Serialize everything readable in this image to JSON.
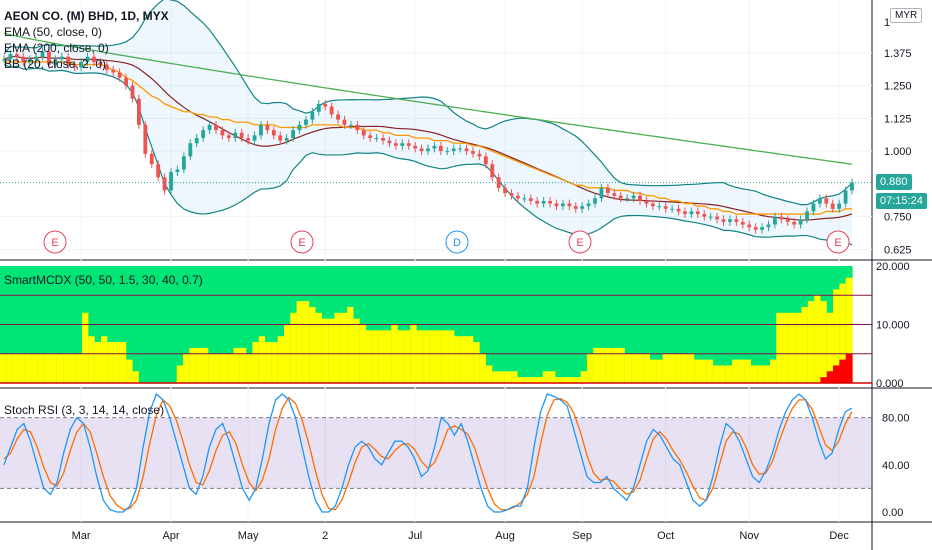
{
  "header": {
    "symbol_line": "AEON CO. (M) BHD, 1D, MYX",
    "ema50_label": "EMA (50, close, 0)",
    "ema200_label": "EMA (200, close, 0)",
    "bb_label": "BB (20, close, 2, 0)",
    "currency": "MYR"
  },
  "price_axis": {
    "ticks": [
      "1.375",
      "1.250",
      "1.125",
      "1.000",
      "0.750",
      "0.625"
    ],
    "last_price": "0.880",
    "countdown": "07:15:24",
    "partial_top_tick": "1"
  },
  "event_markers": [
    {
      "label": "E",
      "color": "#e2445c"
    },
    {
      "label": "E",
      "color": "#e2445c"
    },
    {
      "label": "D",
      "color": "#2196f3"
    },
    {
      "label": "E",
      "color": "#e2445c"
    },
    {
      "label": "E",
      "color": "#e2445c"
    }
  ],
  "x_axis": {
    "ticks": [
      "Mar",
      "Apr",
      "May",
      "2",
      "Jul",
      "Aug",
      "Sep",
      "Oct",
      "Nov",
      "Dec"
    ]
  },
  "smartmcdx": {
    "label": "SmartMCDX (50, 50, 1.5, 30, 40, 0.7)",
    "ticks": [
      "20.000",
      "10.000",
      "0.000"
    ]
  },
  "stochrsi": {
    "label": "Stoch RSI (3, 3, 14, 14, close)",
    "ticks": [
      "80.00",
      "40.00",
      "0.00"
    ]
  },
  "colors": {
    "up": "#26a69a",
    "down": "#ef5350",
    "ema50": "#ff9800",
    "ema200": "#4caf50",
    "bb_basis": "#872323",
    "bb_band": "#138484",
    "bb_fill": "rgba(33,150,243,0.08)",
    "mcdx_green": "#00e676",
    "mcdx_yellow": "#ffff00",
    "mcdx_red": "#ff0000",
    "stoch_k": "#2196f3",
    "stoch_d": "#ff6d00",
    "stoch_bg": "rgba(126,87,194,0.18)"
  },
  "chart_data": {
    "type": "line",
    "title": "AEON CO. (M) BHD, 1D, MYX",
    "price_ylim": [
      0.6,
      1.5
    ],
    "closes": [
      1.35,
      1.37,
      1.36,
      1.34,
      1.35,
      1.36,
      1.38,
      1.33,
      1.35,
      1.36,
      1.33,
      1.32,
      1.34,
      1.36,
      1.34,
      1.33,
      1.31,
      1.3,
      1.28,
      1.25,
      1.2,
      1.1,
      0.99,
      0.95,
      0.9,
      0.85,
      0.92,
      0.93,
      0.98,
      1.03,
      1.05,
      1.08,
      1.1,
      1.08,
      1.06,
      1.05,
      1.07,
      1.05,
      1.04,
      1.06,
      1.1,
      1.08,
      1.06,
      1.04,
      1.05,
      1.08,
      1.1,
      1.12,
      1.15,
      1.18,
      1.17,
      1.14,
      1.12,
      1.1,
      1.1,
      1.08,
      1.06,
      1.05,
      1.05,
      1.04,
      1.03,
      1.02,
      1.03,
      1.02,
      1.01,
      1.0,
      1.01,
      1.02,
      1.0,
      1.0,
      1.01,
      1.01,
      1.0,
      0.99,
      0.98,
      0.95,
      0.9,
      0.86,
      0.84,
      0.83,
      0.82,
      0.82,
      0.81,
      0.8,
      0.81,
      0.8,
      0.79,
      0.8,
      0.79,
      0.78,
      0.79,
      0.8,
      0.82,
      0.86,
      0.84,
      0.83,
      0.82,
      0.82,
      0.83,
      0.81,
      0.8,
      0.79,
      0.79,
      0.78,
      0.78,
      0.77,
      0.76,
      0.77,
      0.76,
      0.75,
      0.75,
      0.74,
      0.73,
      0.74,
      0.73,
      0.72,
      0.71,
      0.7,
      0.71,
      0.72,
      0.75,
      0.74,
      0.73,
      0.72,
      0.74,
      0.77,
      0.8,
      0.82,
      0.8,
      0.78,
      0.8,
      0.85,
      0.88
    ],
    "ema50": [
      1.34,
      1.34,
      1.34,
      1.34,
      1.34,
      1.34,
      1.34,
      1.34,
      1.34,
      1.34,
      1.34,
      1.33,
      1.33,
      1.33,
      1.33,
      1.33,
      1.32,
      1.31,
      1.3,
      1.28,
      1.27,
      1.25,
      1.23,
      1.21,
      1.2,
      1.18,
      1.17,
      1.16,
      1.15,
      1.15,
      1.14,
      1.14,
      1.13,
      1.13,
      1.12,
      1.12,
      1.11,
      1.11,
      1.11,
      1.1,
      1.1,
      1.1,
      1.1,
      1.09,
      1.09,
      1.09,
      1.09,
      1.09,
      1.1,
      1.1,
      1.1,
      1.1,
      1.1,
      1.09,
      1.09,
      1.09,
      1.08,
      1.08,
      1.08,
      1.07,
      1.07,
      1.06,
      1.06,
      1.06,
      1.05,
      1.05,
      1.05,
      1.04,
      1.04,
      1.04,
      1.03,
      1.03,
      1.03,
      1.02,
      1.02,
      1.01,
      1.0,
      0.99,
      0.98,
      0.97,
      0.96,
      0.95,
      0.94,
      0.93,
      0.92,
      0.91,
      0.9,
      0.89,
      0.88,
      0.87,
      0.87,
      0.86,
      0.86,
      0.86,
      0.86,
      0.85,
      0.85,
      0.85,
      0.84,
      0.84,
      0.83,
      0.83,
      0.82,
      0.82,
      0.81,
      0.81,
      0.8,
      0.8,
      0.79,
      0.79,
      0.78,
      0.78,
      0.77,
      0.77,
      0.76,
      0.76,
      0.76,
      0.76,
      0.76,
      0.76,
      0.76,
      0.76,
      0.76,
      0.76,
      0.76,
      0.76,
      0.76,
      0.76,
      0.77,
      0.77,
      0.77,
      0.78,
      0.78
    ],
    "ema200_range": [
      1.45,
      0.95
    ],
    "smartmcdx": {
      "ylim": [
        0,
        20
      ],
      "lines": [
        15,
        10,
        5
      ],
      "yellow": [
        5,
        5,
        5,
        5,
        5,
        5,
        5,
        5,
        5,
        5,
        5,
        5,
        5,
        12,
        8,
        7,
        8,
        7,
        7,
        7,
        4,
        2,
        0,
        0,
        0,
        0,
        0,
        0,
        3,
        5,
        6,
        6,
        6,
        5,
        5,
        5,
        5,
        6,
        6,
        5,
        7,
        8,
        7,
        7,
        8,
        10,
        12,
        14,
        14,
        13,
        12,
        11,
        11,
        12,
        12,
        13,
        11,
        10,
        9,
        9,
        9,
        9,
        10,
        9,
        9,
        10,
        9,
        9,
        9,
        9,
        9,
        9,
        8,
        8,
        8,
        7,
        5,
        3,
        2,
        2,
        2,
        2,
        1,
        1,
        1,
        1,
        2,
        2,
        1,
        1,
        1,
        1,
        2,
        5,
        6,
        6,
        6,
        6,
        6,
        5,
        5,
        5,
        5,
        4,
        4,
        5,
        5,
        5,
        5,
        5,
        4,
        4,
        4,
        3,
        3,
        3,
        4,
        4,
        4,
        3,
        3,
        3,
        4,
        12,
        12,
        12,
        12,
        13,
        14,
        15,
        14,
        12,
        16,
        17,
        18
      ],
      "red_tail": [
        1,
        2,
        3,
        4,
        5
      ]
    },
    "stochrsi": {
      "ylim": [
        0,
        100
      ],
      "bands": [
        80,
        20
      ],
      "k": [
        40,
        55,
        70,
        75,
        60,
        40,
        20,
        15,
        25,
        50,
        70,
        80,
        75,
        55,
        30,
        10,
        2,
        0,
        0,
        5,
        20,
        55,
        85,
        100,
        95,
        80,
        60,
        40,
        20,
        15,
        30,
        55,
        70,
        75,
        60,
        40,
        20,
        10,
        20,
        45,
        75,
        95,
        100,
        95,
        80,
        55,
        30,
        10,
        0,
        0,
        5,
        20,
        40,
        55,
        60,
        55,
        45,
        40,
        50,
        60,
        60,
        55,
        45,
        30,
        35,
        55,
        80,
        75,
        65,
        75,
        60,
        40,
        20,
        5,
        0,
        0,
        2,
        5,
        5,
        20,
        55,
        85,
        100,
        98,
        95,
        90,
        70,
        50,
        30,
        25,
        25,
        30,
        20,
        15,
        10,
        20,
        40,
        60,
        70,
        65,
        55,
        45,
        40,
        25,
        10,
        5,
        10,
        30,
        55,
        75,
        70,
        60,
        45,
        30,
        25,
        35,
        50,
        70,
        85,
        95,
        100,
        95,
        80,
        60,
        45,
        50,
        70,
        85,
        88
      ],
      "d": [
        45,
        50,
        62,
        70,
        68,
        55,
        38,
        25,
        22,
        33,
        52,
        68,
        75,
        68,
        50,
        30,
        14,
        6,
        2,
        3,
        10,
        30,
        58,
        82,
        95,
        90,
        78,
        60,
        40,
        25,
        23,
        35,
        52,
        65,
        68,
        58,
        40,
        25,
        18,
        27,
        45,
        70,
        88,
        97,
        92,
        78,
        58,
        35,
        15,
        3,
        2,
        10,
        25,
        42,
        55,
        58,
        53,
        47,
        45,
        52,
        57,
        58,
        53,
        43,
        37,
        42,
        55,
        70,
        73,
        70,
        66,
        55,
        37,
        20,
        7,
        2,
        2,
        4,
        8,
        15,
        30,
        58,
        82,
        95,
        96,
        93,
        84,
        68,
        48,
        33,
        27,
        28,
        26,
        20,
        15,
        17,
        27,
        45,
        62,
        68,
        62,
        52,
        44,
        34,
        22,
        12,
        10,
        20,
        40,
        60,
        68,
        66,
        55,
        40,
        32,
        33,
        43,
        60,
        75,
        88,
        95,
        95,
        87,
        72,
        57,
        52,
        60,
        75,
        85
      ]
    }
  }
}
